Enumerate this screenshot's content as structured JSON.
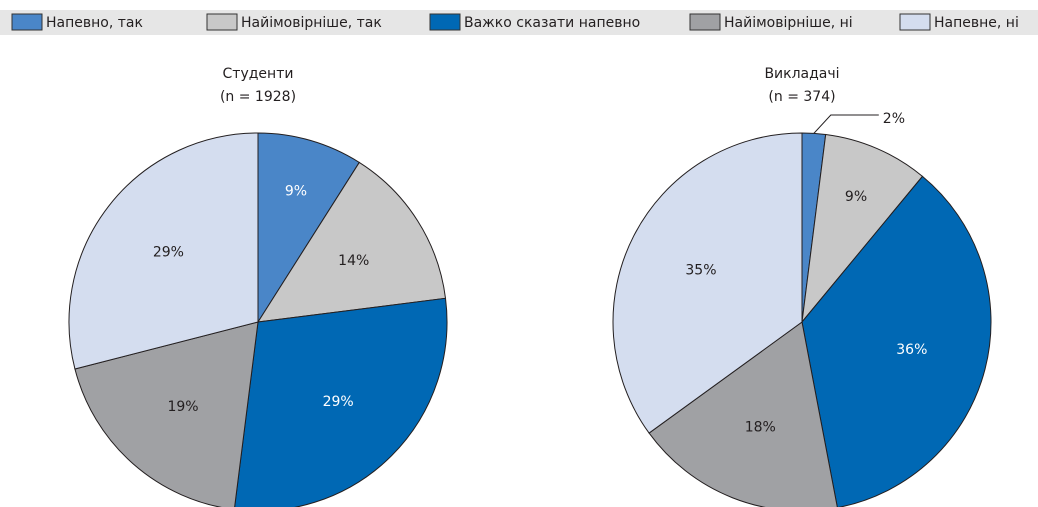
{
  "legend": {
    "names": [
      "Напевно, так",
      "Найімовірніше, так",
      "Важко сказати напевно",
      "Найімовірніше, ні",
      "Напевне, ні"
    ],
    "colors": [
      "#4a86c8",
      "#c8c8c8",
      "#0068b4",
      "#a0a1a4",
      "#d4ddef"
    ]
  },
  "chart_data": [
    {
      "type": "pie",
      "title": "Студенти",
      "subtitle": "(n = 1928)",
      "values": [
        9,
        14,
        29,
        19,
        29
      ],
      "value_labels": [
        "9%",
        "14%",
        "29%",
        "19%",
        "29%"
      ]
    },
    {
      "type": "pie",
      "title": "Викладачі",
      "subtitle": "(n = 374)",
      "values": [
        2,
        9,
        36,
        18,
        35
      ],
      "value_labels": [
        "2%",
        "9%",
        "36%",
        "18%",
        "35%"
      ]
    }
  ]
}
